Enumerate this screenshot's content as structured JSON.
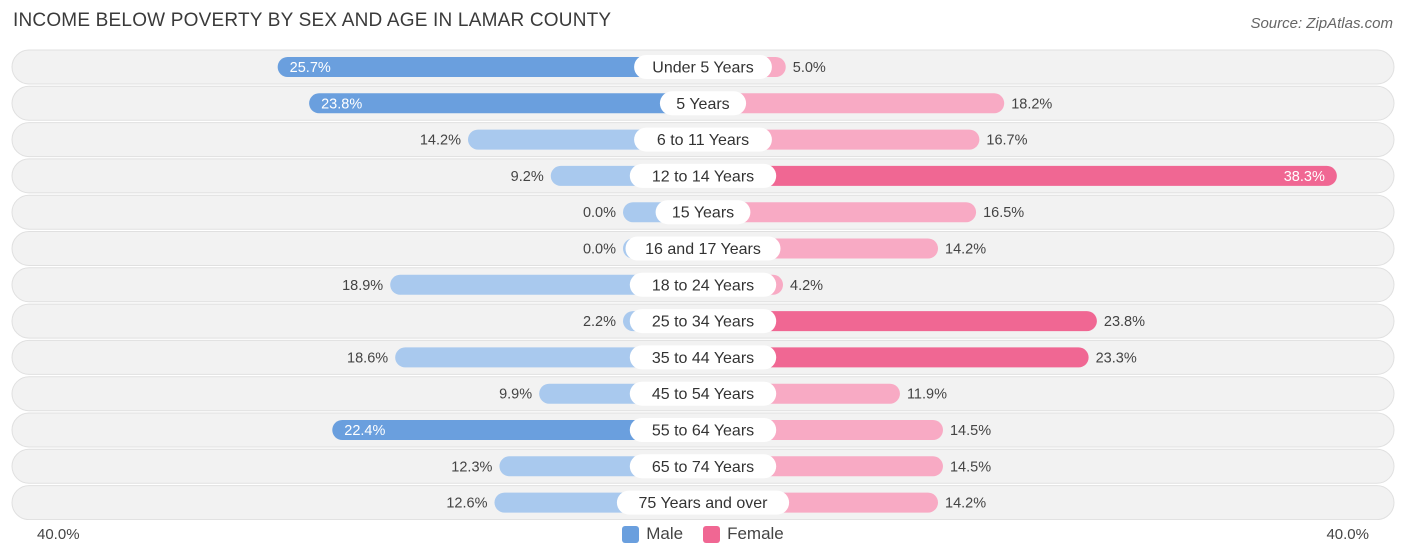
{
  "title": "INCOME BELOW POVERTY BY SEX AND AGE IN LAMAR COUNTY",
  "source": "Source: ZipAtlas.com",
  "chart_data": {
    "type": "bar",
    "orientation": "horizontal-diverging",
    "title": "INCOME BELOW POVERTY BY SEX AND AGE IN LAMAR COUNTY",
    "categories": [
      "Under 5 Years",
      "5 Years",
      "6 to 11 Years",
      "12 to 14 Years",
      "15 Years",
      "16 and 17 Years",
      "18 to 24 Years",
      "25 to 34 Years",
      "35 to 44 Years",
      "45 to 54 Years",
      "55 to 64 Years",
      "65 to 74 Years",
      "75 Years and over"
    ],
    "series": [
      {
        "name": "Male",
        "values": [
          25.7,
          23.8,
          14.2,
          9.2,
          0.0,
          0.0,
          18.9,
          2.2,
          18.6,
          9.9,
          22.4,
          12.3,
          12.6
        ],
        "labels": [
          "25.7%",
          "23.8%",
          "14.2%",
          "9.2%",
          "0.0%",
          "0.0%",
          "18.9%",
          "2.2%",
          "18.6%",
          "9.9%",
          "22.4%",
          "12.3%",
          "12.6%"
        ]
      },
      {
        "name": "Female",
        "values": [
          5.0,
          18.2,
          16.7,
          38.3,
          16.5,
          14.2,
          4.2,
          23.8,
          23.3,
          11.9,
          14.5,
          14.5,
          14.2
        ],
        "labels": [
          "5.0%",
          "18.2%",
          "16.7%",
          "38.3%",
          "16.5%",
          "14.2%",
          "4.2%",
          "23.8%",
          "23.3%",
          "11.9%",
          "14.5%",
          "14.5%",
          "14.2%"
        ]
      }
    ],
    "axis_max": 40.0,
    "axis_min_label": "40.0%",
    "axis_max_label": "40.0%",
    "legend_position": "bottom-center",
    "colors": {
      "male_strong": "#6a9fde",
      "male_light": "#a9c9ee",
      "female_strong": "#f06793",
      "female_light": "#f8aac4",
      "row_bg": "#f2f2f2",
      "row_border": "#e0e0e0"
    }
  },
  "legend": {
    "male": "Male",
    "female": "Female"
  }
}
